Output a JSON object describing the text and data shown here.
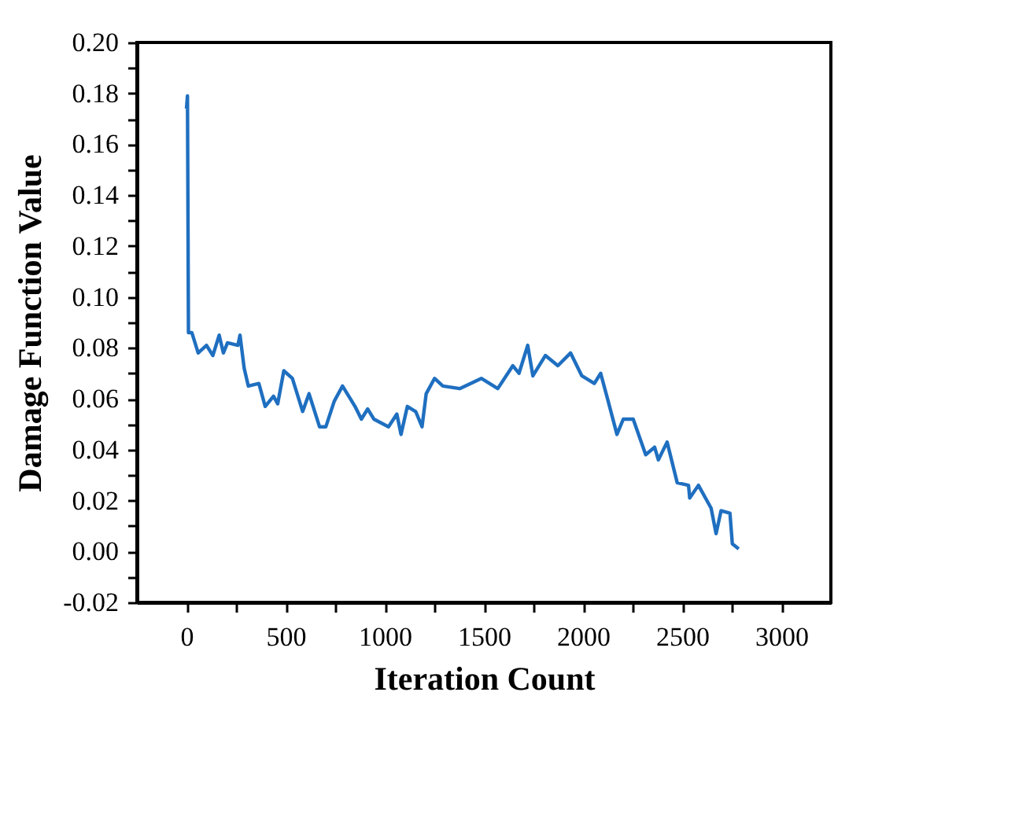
{
  "chart_data": {
    "type": "line",
    "xlabel": "Iteration Count",
    "ylabel": "Damage Function Value",
    "x": [
      0,
      5,
      10,
      27,
      59,
      101,
      133,
      165,
      186,
      207,
      259,
      270,
      291,
      312,
      365,
      397,
      439,
      460,
      491,
      534,
      586,
      618,
      671,
      703,
      745,
      787,
      850,
      882,
      914,
      945,
      1019,
      1061,
      1082,
      1114,
      1156,
      1188,
      1209,
      1251,
      1293,
      1378,
      1487,
      1570,
      1646,
      1677,
      1721,
      1747,
      1810,
      1873,
      1937,
      1994,
      2057,
      2089,
      2127,
      2171,
      2203,
      2253,
      2316,
      2361,
      2380,
      2424,
      2475,
      2532,
      2538,
      2582,
      2646,
      2671,
      2696,
      2741,
      2753,
      2785
    ],
    "series": [
      {
        "color": "#1f6fc0",
        "values": [
          0.174,
          0.179,
          0.086,
          0.086,
          0.078,
          0.081,
          0.077,
          0.085,
          0.078,
          0.082,
          0.081,
          0.085,
          0.072,
          0.065,
          0.066,
          0.057,
          0.061,
          0.058,
          0.071,
          0.068,
          0.055,
          0.062,
          0.049,
          0.049,
          0.059,
          0.065,
          0.057,
          0.052,
          0.056,
          0.052,
          0.049,
          0.054,
          0.046,
          0.057,
          0.055,
          0.049,
          0.062,
          0.068,
          0.065,
          0.064,
          0.068,
          0.064,
          0.073,
          0.07,
          0.081,
          0.069,
          0.077,
          0.073,
          0.078,
          0.069,
          0.066,
          0.07,
          0.059,
          0.046,
          0.052,
          0.052,
          0.038,
          0.041,
          0.036,
          0.043,
          0.027,
          0.026,
          0.021,
          0.026,
          0.017,
          0.007,
          0.016,
          0.015,
          0.003,
          0.001
        ]
      }
    ],
    "xlim": [
      -250,
      3250
    ],
    "xticks": [
      0,
      {
        "value": 250,
        "label": null
      },
      500,
      {
        "value": 750,
        "label": null
      },
      1000,
      {
        "value": 1250,
        "label": null
      },
      1500,
      {
        "value": 1750,
        "label": null
      },
      2000,
      {
        "value": 2250,
        "label": null
      },
      2500,
      {
        "value": 2750,
        "label": null
      },
      3000
    ],
    "ylim": [
      -0.02,
      0.2
    ],
    "yticks": [
      {
        "value": -0.02,
        "label": "-0.02"
      },
      {
        "value": -0.01,
        "label": null
      },
      {
        "value": 0,
        "label": "0.00"
      },
      {
        "value": 0.01,
        "label": null
      },
      {
        "value": 0.02,
        "label": "0.02"
      },
      {
        "value": 0.03,
        "label": null
      },
      {
        "value": 0.04,
        "label": "0.04"
      },
      {
        "value": 0.05,
        "label": null
      },
      {
        "value": 0.06,
        "label": "0.06"
      },
      {
        "value": 0.07,
        "label": null
      },
      {
        "value": 0.08,
        "label": "0.08"
      },
      {
        "value": 0.09,
        "label": null
      },
      {
        "value": 0.1,
        "label": "0.10"
      },
      {
        "value": 0.11,
        "label": null
      },
      {
        "value": 0.12,
        "label": "0.12"
      },
      {
        "value": 0.13,
        "label": null
      },
      {
        "value": 0.14,
        "label": "0.14"
      },
      {
        "value": 0.15,
        "label": null
      },
      {
        "value": 0.16,
        "label": "0.16"
      },
      {
        "value": 0.17,
        "label": null
      },
      {
        "value": 0.18,
        "label": "0.18"
      },
      {
        "value": 0.19,
        "label": null
      },
      {
        "value": 0.2,
        "label": "0.20"
      }
    ],
    "grid": false,
    "marker": "none",
    "line_style": "solid"
  }
}
